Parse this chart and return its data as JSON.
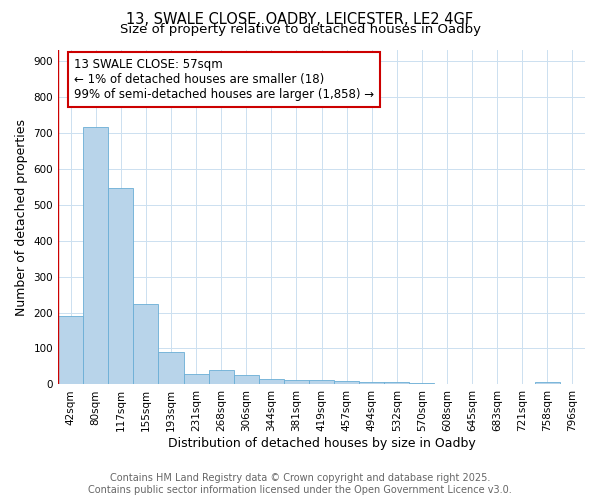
{
  "title_line1": "13, SWALE CLOSE, OADBY, LEICESTER, LE2 4GF",
  "title_line2": "Size of property relative to detached houses in Oadby",
  "xlabel": "Distribution of detached houses by size in Oadby",
  "ylabel": "Number of detached properties",
  "categories": [
    "42sqm",
    "80sqm",
    "117sqm",
    "155sqm",
    "193sqm",
    "231sqm",
    "268sqm",
    "306sqm",
    "344sqm",
    "381sqm",
    "419sqm",
    "457sqm",
    "494sqm",
    "532sqm",
    "570sqm",
    "608sqm",
    "645sqm",
    "683sqm",
    "721sqm",
    "758sqm",
    "796sqm"
  ],
  "values": [
    190,
    715,
    545,
    225,
    90,
    28,
    40,
    25,
    15,
    12,
    12,
    10,
    8,
    8,
    5,
    2,
    2,
    2,
    2,
    8,
    2
  ],
  "bar_color": "#b8d4ea",
  "bar_edge_color": "#6aaed6",
  "grid_color": "#cce0f0",
  "background_color": "#ffffff",
  "annotation_line1": "13 SWALE CLOSE: 57sqm",
  "annotation_line2": "← 1% of detached houses are smaller (18)",
  "annotation_line3": "99% of semi-detached houses are larger (1,858) →",
  "annotation_box_color": "#ffffff",
  "annotation_box_edge": "#cc0000",
  "ylim": [
    0,
    930
  ],
  "yticks": [
    0,
    100,
    200,
    300,
    400,
    500,
    600,
    700,
    800,
    900
  ],
  "footer_line1": "Contains HM Land Registry data © Crown copyright and database right 2025.",
  "footer_line2": "Contains public sector information licensed under the Open Government Licence v3.0.",
  "title_fontsize": 10.5,
  "subtitle_fontsize": 9.5,
  "axis_label_fontsize": 9,
  "tick_fontsize": 7.5,
  "annotation_fontsize": 8.5,
  "footer_fontsize": 7
}
